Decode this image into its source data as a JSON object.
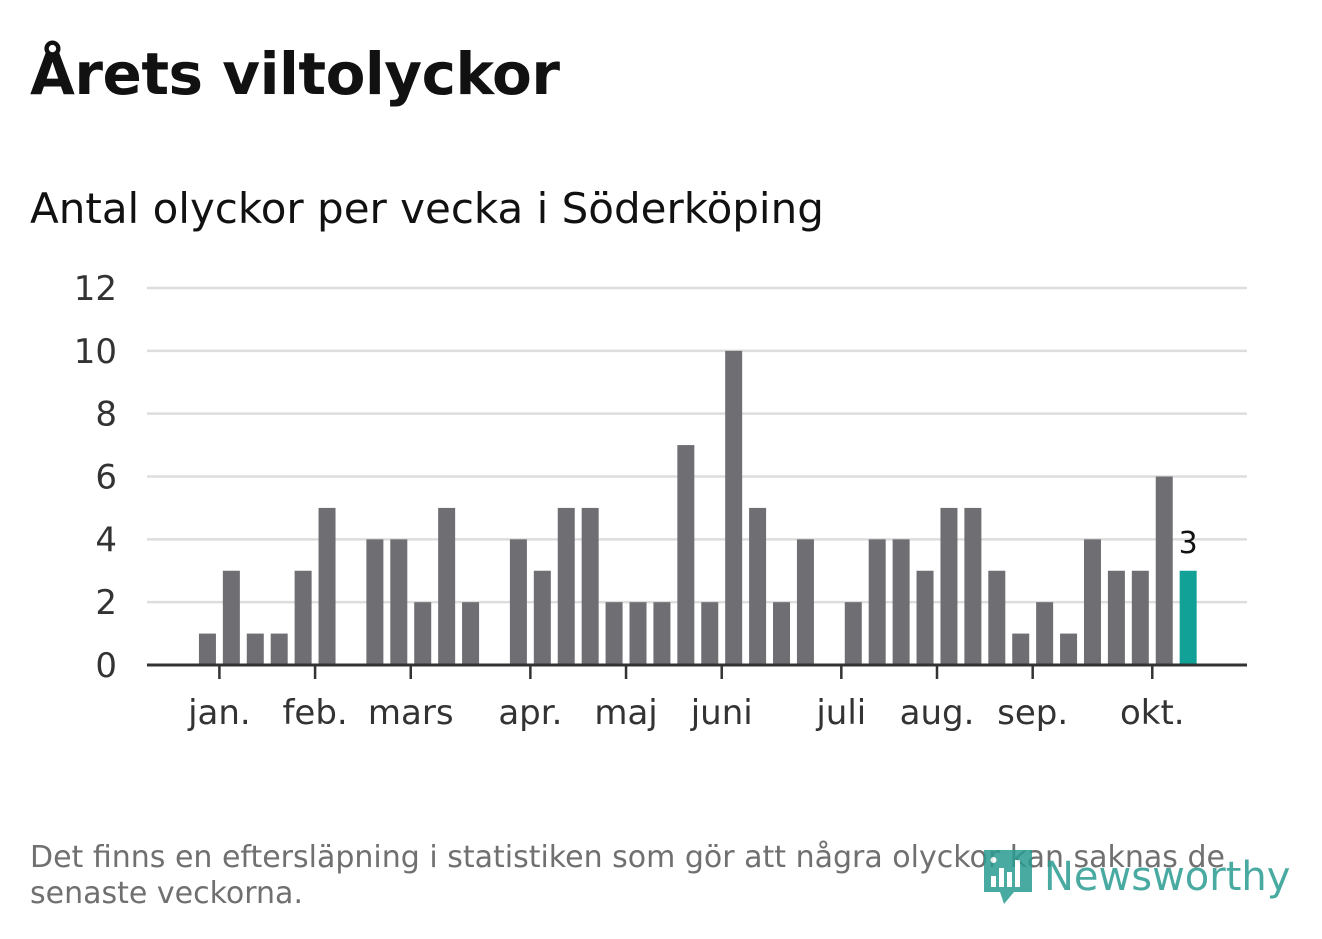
{
  "header": {
    "title": "Årets viltolyckor",
    "subtitle": "Antal olyckor per vecka i Söderköping"
  },
  "footnote": "Det finns en eftersläpning i statistiken som gör att några olyckor kan saknas de senaste veckorna.",
  "logo": {
    "text": "Newsworthy"
  },
  "colors": {
    "bar": "#6f6e73",
    "highlight": "#12a197",
    "grid": "#dddddd",
    "axis": "#333333",
    "logo": "#2a9c92"
  },
  "chart_data": {
    "type": "bar",
    "title": "Antal olyckor per vecka i Söderköping",
    "xlabel": "",
    "ylabel": "",
    "ylim": [
      0,
      12
    ],
    "yticks": [
      0,
      2,
      4,
      6,
      8,
      10,
      12
    ],
    "grid": true,
    "weeks": [
      1,
      2,
      3,
      4,
      5,
      6,
      7,
      8,
      9,
      10,
      11,
      12,
      13,
      14,
      15,
      16,
      17,
      18,
      19,
      20,
      21,
      22,
      23,
      24,
      25,
      26,
      27,
      28,
      29,
      30,
      31,
      32,
      33,
      34,
      35,
      36,
      37,
      38,
      39,
      40,
      41,
      42,
      43,
      44
    ],
    "values": [
      0,
      0,
      1,
      3,
      1,
      1,
      3,
      5,
      0,
      4,
      4,
      2,
      5,
      2,
      0,
      4,
      3,
      5,
      5,
      2,
      2,
      2,
      7,
      2,
      10,
      5,
      2,
      4,
      0,
      2,
      4,
      4,
      3,
      5,
      5,
      3,
      1,
      2,
      1,
      4,
      3,
      3,
      6,
      3
    ],
    "highlight_index": 43,
    "highlight_label": "3",
    "month_ticks": [
      {
        "label": "jan.",
        "week": 3.5
      },
      {
        "label": "feb.",
        "week": 7.5
      },
      {
        "label": "mars",
        "week": 11.5
      },
      {
        "label": "apr.",
        "week": 16.5
      },
      {
        "label": "maj",
        "week": 20.5
      },
      {
        "label": "juni",
        "week": 24.5
      },
      {
        "label": "juli",
        "week": 29.5
      },
      {
        "label": "aug.",
        "week": 33.5
      },
      {
        "label": "sep.",
        "week": 37.5
      },
      {
        "label": "okt.",
        "week": 42.5
      }
    ]
  }
}
